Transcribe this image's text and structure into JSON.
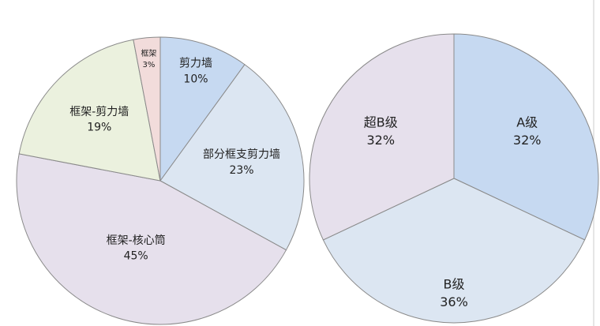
{
  "chart_data": [
    {
      "type": "pie",
      "categories": [
        "剪力墙",
        "部分框支剪力墙",
        "框架-核心筒",
        "框架-剪力墙",
        "框架"
      ],
      "values": [
        10,
        23,
        45,
        19,
        3
      ],
      "value_labels": [
        "10%",
        "23%",
        "45%",
        "19%",
        "3%"
      ],
      "colors": [
        "#c6d9f1",
        "#dce6f2",
        "#e6e0ec",
        "#ebf1de",
        "#f2dcdb"
      ]
    },
    {
      "type": "pie",
      "categories": [
        "A级",
        "B级",
        "超B级"
      ],
      "values": [
        32,
        36,
        32
      ],
      "value_labels": [
        "32%",
        "36%",
        "32%"
      ],
      "colors": [
        "#c6d9f1",
        "#dce6f2",
        "#e6e0ec"
      ]
    }
  ]
}
